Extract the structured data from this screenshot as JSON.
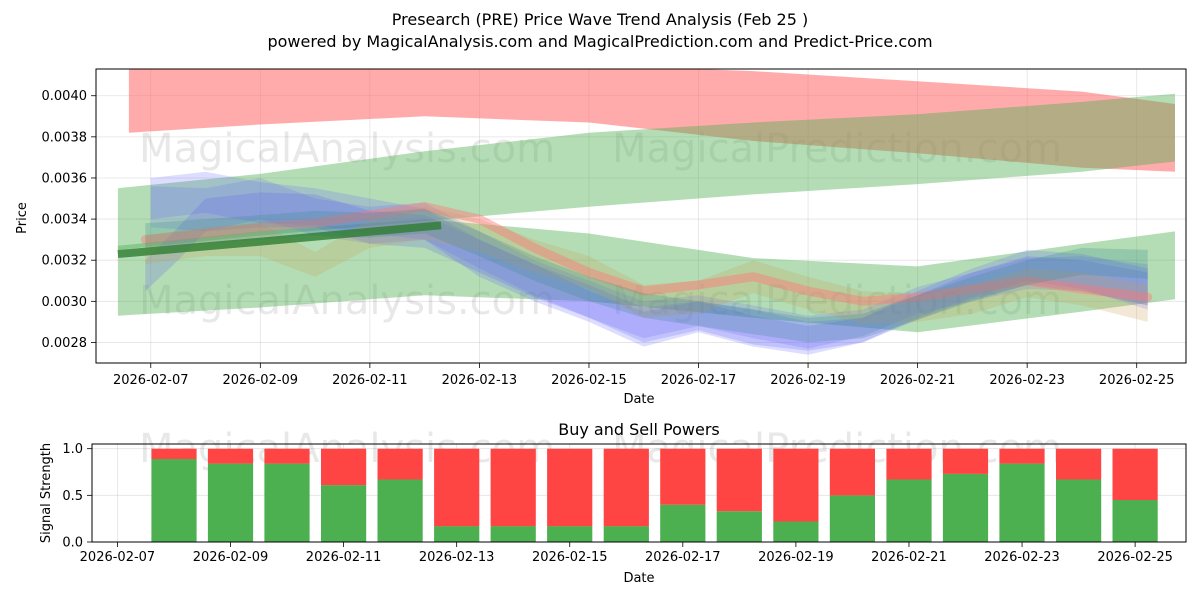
{
  "chart_data": [
    {
      "type": "area",
      "title": "Presearch (PRE) Price Wave Trend Analysis (Feb 25 )",
      "subtitle": "powered by MagicalAnalysis.com and MagicalPrediction.com and Predict-Price.com",
      "xlabel": "Date",
      "ylabel": "Price",
      "ylim": [
        0.0027,
        0.00413
      ],
      "xlim": [
        "2026-02-06.0",
        "2026-02-25.9"
      ],
      "grid": true,
      "x_ticks": [
        "2026-02-07",
        "2026-02-09",
        "2026-02-11",
        "2026-02-13",
        "2026-02-15",
        "2026-02-17",
        "2026-02-19",
        "2026-02-21",
        "2026-02-23",
        "2026-02-25"
      ],
      "y_ticks": [
        "0.0028",
        "0.0030",
        "0.0032",
        "0.0034",
        "0.0036",
        "0.0038",
        "0.0040"
      ],
      "watermarks": [
        "MagicalAnalysis.com",
        "MagicalPrediction.com",
        "MagicalAnalysis.com",
        "MagicalPrediction.com"
      ],
      "bands": [
        {
          "name": "red-upper-band",
          "color": "#ff6666",
          "opacity": 0.55,
          "x": [
            6.6,
            9,
            12,
            15,
            18,
            21,
            24,
            25.7
          ],
          "upper": [
            0.00415,
            0.00415,
            0.00415,
            0.00415,
            0.00412,
            0.00407,
            0.00402,
            0.00396
          ],
          "lower": [
            0.00382,
            0.00386,
            0.0039,
            0.00387,
            0.00378,
            0.00372,
            0.00365,
            0.00363
          ]
        },
        {
          "name": "green-rising-band",
          "color": "#4caf50",
          "opacity": 0.42,
          "x": [
            6.4,
            9,
            12,
            15,
            18,
            21,
            24,
            25.7
          ],
          "upper": [
            0.00355,
            0.00362,
            0.00373,
            0.00382,
            0.00387,
            0.00391,
            0.00397,
            0.00401
          ],
          "lower": [
            0.00325,
            0.00332,
            0.00339,
            0.00346,
            0.00352,
            0.00357,
            0.00363,
            0.00368
          ]
        },
        {
          "name": "green-lower-band",
          "color": "#4caf50",
          "opacity": 0.42,
          "x": [
            6.4,
            9,
            12,
            15,
            18,
            21,
            24,
            25.7
          ],
          "upper": [
            0.00327,
            0.00334,
            0.0034,
            0.00333,
            0.00321,
            0.00317,
            0.00328,
            0.00334
          ],
          "lower": [
            0.00293,
            0.00297,
            0.00303,
            0.003,
            0.00292,
            0.00285,
            0.00295,
            0.00301
          ]
        },
        {
          "name": "blue-wave-1",
          "color": "#6666ff",
          "opacity": 0.22,
          "x": [
            7,
            8,
            9,
            10,
            11,
            12,
            13,
            14,
            15,
            16,
            17,
            18,
            19,
            20,
            21,
            22,
            23,
            24,
            25.2
          ],
          "upper": [
            0.0036,
            0.00363,
            0.00358,
            0.00355,
            0.0035,
            0.00345,
            0.0033,
            0.00318,
            0.00305,
            0.00295,
            0.003,
            0.00296,
            0.0029,
            0.00292,
            0.00305,
            0.00316,
            0.00325,
            0.00323,
            0.00316
          ],
          "lower": [
            0.0034,
            0.00343,
            0.00338,
            0.00337,
            0.00333,
            0.0033,
            0.00312,
            0.003,
            0.0029,
            0.00278,
            0.00285,
            0.00278,
            0.00274,
            0.0028,
            0.00292,
            0.00302,
            0.0031,
            0.00306,
            0.00296
          ]
        },
        {
          "name": "blue-wave-2",
          "color": "#6666ff",
          "opacity": 0.2,
          "x": [
            7,
            8,
            9,
            10,
            11,
            12,
            13,
            14,
            15,
            16,
            17,
            18,
            19,
            20,
            21,
            22,
            23,
            24,
            25.2
          ],
          "upper": [
            0.00356,
            0.00355,
            0.0036,
            0.0035,
            0.00346,
            0.00348,
            0.00334,
            0.0032,
            0.0031,
            0.003,
            0.00303,
            0.00298,
            0.00293,
            0.00296,
            0.00307,
            0.00314,
            0.00321,
            0.00322,
            0.00318
          ],
          "lower": [
            0.00336,
            0.00334,
            0.0034,
            0.00332,
            0.00328,
            0.0033,
            0.00316,
            0.00303,
            0.00292,
            0.00282,
            0.00288,
            0.00282,
            0.00277,
            0.00283,
            0.00294,
            0.003,
            0.00306,
            0.00305,
            0.00298
          ]
        },
        {
          "name": "blue-wave-3",
          "color": "#5555ee",
          "opacity": 0.2,
          "x": [
            6.9,
            7.5,
            8,
            9,
            10,
            11,
            12,
            13,
            14,
            15,
            16,
            17,
            18,
            19,
            20,
            21,
            22,
            23,
            24,
            25.2
          ],
          "upper": [
            0.0032,
            0.00336,
            0.0035,
            0.00353,
            0.00352,
            0.00344,
            0.00342,
            0.0033,
            0.00318,
            0.00308,
            0.00297,
            0.003,
            0.00293,
            0.00288,
            0.00292,
            0.00303,
            0.00314,
            0.00322,
            0.0032,
            0.00314
          ],
          "lower": [
            0.00305,
            0.0032,
            0.00334,
            0.00336,
            0.00336,
            0.00328,
            0.00326,
            0.00314,
            0.00302,
            0.00292,
            0.0028,
            0.00286,
            0.00279,
            0.00276,
            0.0028,
            0.00291,
            0.00301,
            0.00308,
            0.00305,
            0.00298
          ]
        },
        {
          "name": "orange-wave",
          "color": "#c8a050",
          "opacity": 0.24,
          "x": [
            6.9,
            8,
            9,
            10,
            11,
            12,
            13,
            14,
            15,
            16,
            17,
            18,
            19,
            20,
            21,
            22,
            23,
            24,
            25.2
          ],
          "upper": [
            0.00332,
            0.00336,
            0.00338,
            0.00324,
            0.0034,
            0.00346,
            0.0034,
            0.0033,
            0.00322,
            0.00308,
            0.0031,
            0.0032,
            0.00312,
            0.00305,
            0.00303,
            0.00308,
            0.00316,
            0.00314,
            0.00308
          ],
          "lower": [
            0.00318,
            0.00322,
            0.00322,
            0.00312,
            0.00326,
            0.0033,
            0.00324,
            0.00314,
            0.00306,
            0.00292,
            0.00294,
            0.00304,
            0.00296,
            0.00289,
            0.0029,
            0.00294,
            0.00302,
            0.00298,
            0.0029
          ]
        },
        {
          "name": "red-wave",
          "color": "#ff7777",
          "opacity": 0.22,
          "x": [
            6.9,
            8,
            9,
            10,
            11,
            12,
            13,
            14,
            15,
            16,
            17,
            18,
            19,
            20,
            21,
            22,
            23,
            24,
            25.2
          ],
          "upper": [
            0.0033,
            0.00333,
            0.00336,
            0.00338,
            0.00342,
            0.00346,
            0.0034,
            0.00326,
            0.00314,
            0.00305,
            0.00308,
            0.00312,
            0.00305,
            0.003,
            0.00302,
            0.00306,
            0.0031,
            0.00306,
            0.00302
          ]
        },
        {
          "name": "teal-wave",
          "color": "#3a8a8a",
          "opacity": 0.26,
          "x": [
            6.9,
            8,
            9,
            10,
            11,
            12,
            13,
            14,
            15,
            16,
            17,
            18,
            19,
            20,
            21,
            22,
            23,
            24,
            25.2
          ],
          "upper": [
            0.00338,
            0.0034,
            0.00342,
            0.00344,
            0.00343,
            0.00345,
            0.00334,
            0.00322,
            0.00312,
            0.00304,
            0.003,
            0.00296,
            0.00292,
            0.00294,
            0.00303,
            0.00312,
            0.0032,
            0.00326,
            0.00325
          ],
          "lower": [
            0.00326,
            0.00328,
            0.0033,
            0.00332,
            0.00331,
            0.00333,
            0.00322,
            0.0031,
            0.003,
            0.00292,
            0.00288,
            0.00284,
            0.0028,
            0.00282,
            0.00291,
            0.003,
            0.00308,
            0.00313,
            0.00311
          ]
        }
      ],
      "trend_line": {
        "name": "dark-green-trend",
        "color": "#2e7d32",
        "x": [
          6.4,
          9,
          12.3
        ],
        "y": [
          0.00323,
          0.00329,
          0.00337
        ]
      }
    },
    {
      "type": "bar",
      "title": "Buy and Sell Powers",
      "xlabel": "Date",
      "ylabel": "Signal Strength",
      "ylim": [
        0,
        1.05
      ],
      "stacked": true,
      "grid": true,
      "x_ticks": [
        "2026-02-07",
        "2026-02-09",
        "2026-02-11",
        "2026-02-13",
        "2026-02-15",
        "2026-02-17",
        "2026-02-19",
        "2026-02-21",
        "2026-02-23",
        "2026-02-25"
      ],
      "y_ticks": [
        "0.0",
        "0.5",
        "1.0"
      ],
      "categories": [
        "2026-02-08",
        "2026-02-09",
        "2026-02-10",
        "2026-02-11",
        "2026-02-12",
        "2026-02-13",
        "2026-02-14",
        "2026-02-15",
        "2026-02-16",
        "2026-02-17",
        "2026-02-18",
        "2026-02-19",
        "2026-02-20",
        "2026-02-21",
        "2026-02-22",
        "2026-02-23",
        "2026-02-24",
        "2026-02-25"
      ],
      "series": [
        {
          "name": "Buy",
          "color": "#4caf50",
          "values": [
            0.89,
            0.84,
            0.84,
            0.61,
            0.67,
            0.17,
            0.17,
            0.17,
            0.17,
            0.4,
            0.33,
            0.22,
            0.5,
            0.67,
            0.73,
            0.84,
            0.67,
            0.45
          ]
        },
        {
          "name": "Sell",
          "color": "#ff4444",
          "values": [
            0.11,
            0.16,
            0.16,
            0.39,
            0.33,
            0.83,
            0.83,
            0.83,
            0.83,
            0.6,
            0.67,
            0.78,
            0.5,
            0.33,
            0.27,
            0.16,
            0.33,
            0.55
          ]
        }
      ]
    }
  ]
}
